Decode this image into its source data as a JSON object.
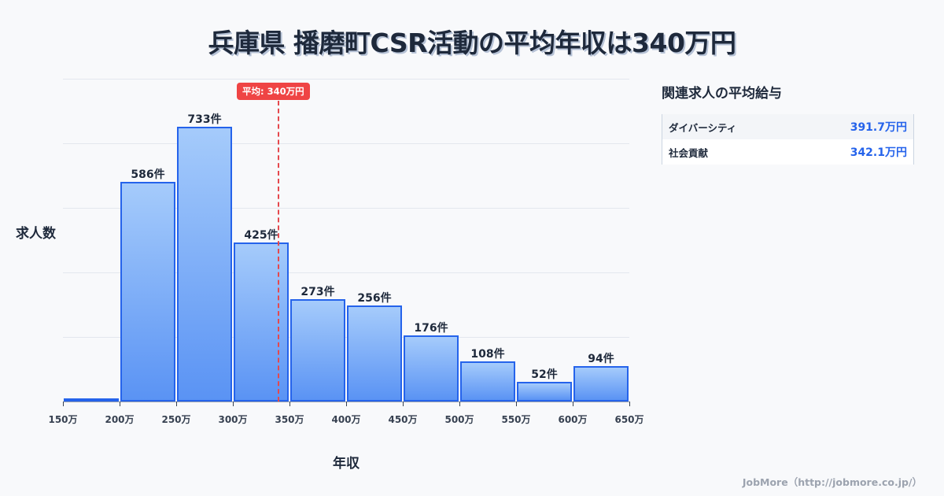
{
  "title": "兵庫県 播磨町CSR活動の平均年収は340万円",
  "chart_data": {
    "type": "bar",
    "title": "兵庫県 播磨町CSR活動の平均年収は340万円",
    "xlabel": "年収",
    "ylabel": "求人数",
    "x_ticks": [
      "150万",
      "200万",
      "250万",
      "300万",
      "350万",
      "400万",
      "450万",
      "500万",
      "550万",
      "600万",
      "650万"
    ],
    "categories": [
      "150-200万",
      "200-250万",
      "250-300万",
      "300-350万",
      "350-400万",
      "400-450万",
      "450-500万",
      "500-550万",
      "550-600万",
      "600-650万"
    ],
    "values": [
      2,
      586,
      733,
      425,
      273,
      256,
      176,
      108,
      52,
      94
    ],
    "value_labels": [
      "",
      "586件",
      "733件",
      "425件",
      "273件",
      "256件",
      "176件",
      "108件",
      "52件",
      "94件"
    ],
    "ylim": [
      0,
      861
    ],
    "grid": true,
    "average": {
      "value": 340,
      "label": "平均: 340万円"
    }
  },
  "axes": {
    "y_title": "求人数",
    "x_title": "年収"
  },
  "sidebar": {
    "title": "関連求人の平均給与",
    "items": [
      {
        "name": "ダイバーシティ",
        "value": "391.7万円"
      },
      {
        "name": "社会貢献",
        "value": "342.1万円"
      }
    ]
  },
  "footer": "JobMore（http://jobmore.co.jp/）",
  "colors": {
    "bar_border": "#2563eb",
    "average_line": "#ef4444",
    "sidebar_value": "#2563eb"
  }
}
